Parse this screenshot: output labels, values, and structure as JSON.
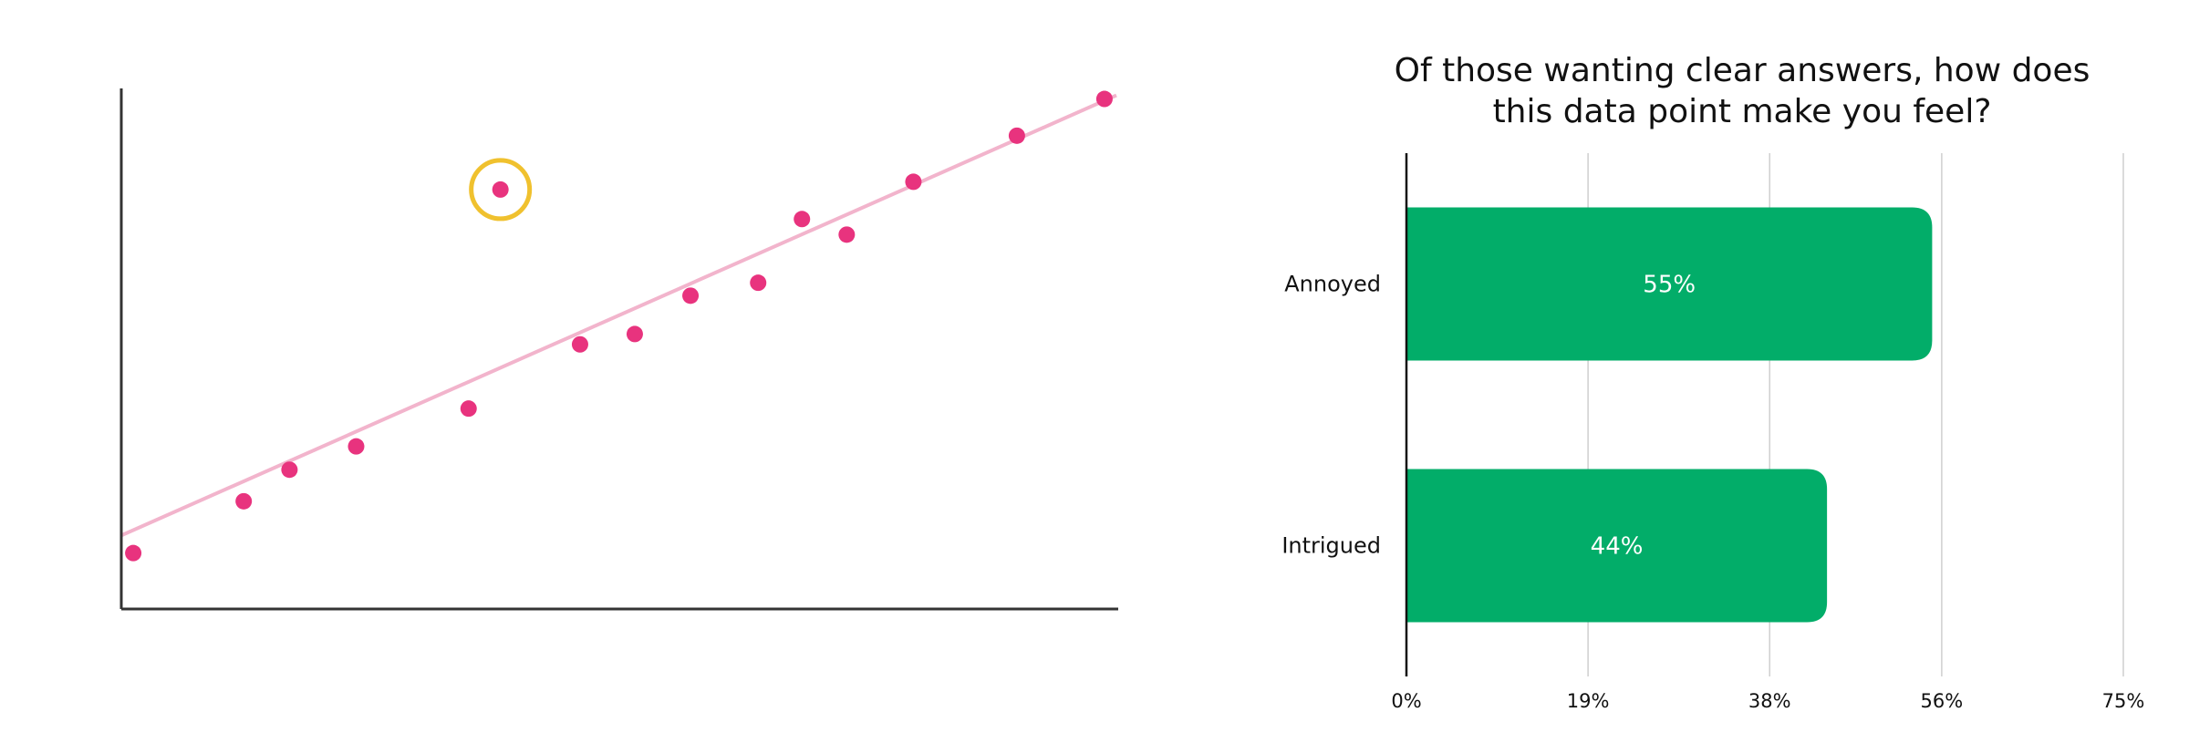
{
  "chart_data": [
    {
      "type": "scatter",
      "title": "",
      "xlabel": "",
      "ylabel": "",
      "xlim": [
        0,
        100
      ],
      "ylim": [
        0,
        100
      ],
      "grid": false,
      "colors": {
        "points": "#e8337e",
        "trend": "#f2b4cc",
        "highlight": "#f0c12e",
        "axis": "#333333"
      },
      "points": [
        {
          "x": 1.2,
          "y": 10.8
        },
        {
          "x": 12.3,
          "y": 20.8
        },
        {
          "x": 16.9,
          "y": 26.9
        },
        {
          "x": 23.6,
          "y": 31.4
        },
        {
          "x": 34.9,
          "y": 38.7
        },
        {
          "x": 38.1,
          "y": 81.0,
          "highlighted": true
        },
        {
          "x": 46.1,
          "y": 51.1
        },
        {
          "x": 51.6,
          "y": 53.1
        },
        {
          "x": 57.2,
          "y": 60.5
        },
        {
          "x": 64.0,
          "y": 63.0
        },
        {
          "x": 68.4,
          "y": 75.3
        },
        {
          "x": 72.9,
          "y": 72.3
        },
        {
          "x": 79.6,
          "y": 82.5
        },
        {
          "x": 90.0,
          "y": 91.4
        },
        {
          "x": 98.8,
          "y": 98.5
        }
      ],
      "trendline": {
        "x": [
          0,
          100
        ],
        "y": [
          14.2,
          99.2
        ]
      }
    },
    {
      "type": "bar",
      "orientation": "horizontal",
      "title": "Of those wanting clear answers, how does this data point make you feel?",
      "title_lines": [
        "Of those wanting clear answers, how does",
        "this data point make you feel?"
      ],
      "categories": [
        "Annoyed",
        "Intrigued"
      ],
      "values": [
        55,
        44
      ],
      "value_labels": [
        "55%",
        "44%"
      ],
      "xlim": [
        0,
        75
      ],
      "ticks": [
        0,
        19,
        38,
        56,
        75
      ],
      "tick_labels": [
        "0%",
        "19%",
        "38%",
        "56%",
        "75%"
      ],
      "grid": true,
      "colors": {
        "bar": "#02ad69",
        "bar_label": "#ffffff",
        "grid": "#cfcfcf",
        "axis": "#111111"
      }
    }
  ]
}
